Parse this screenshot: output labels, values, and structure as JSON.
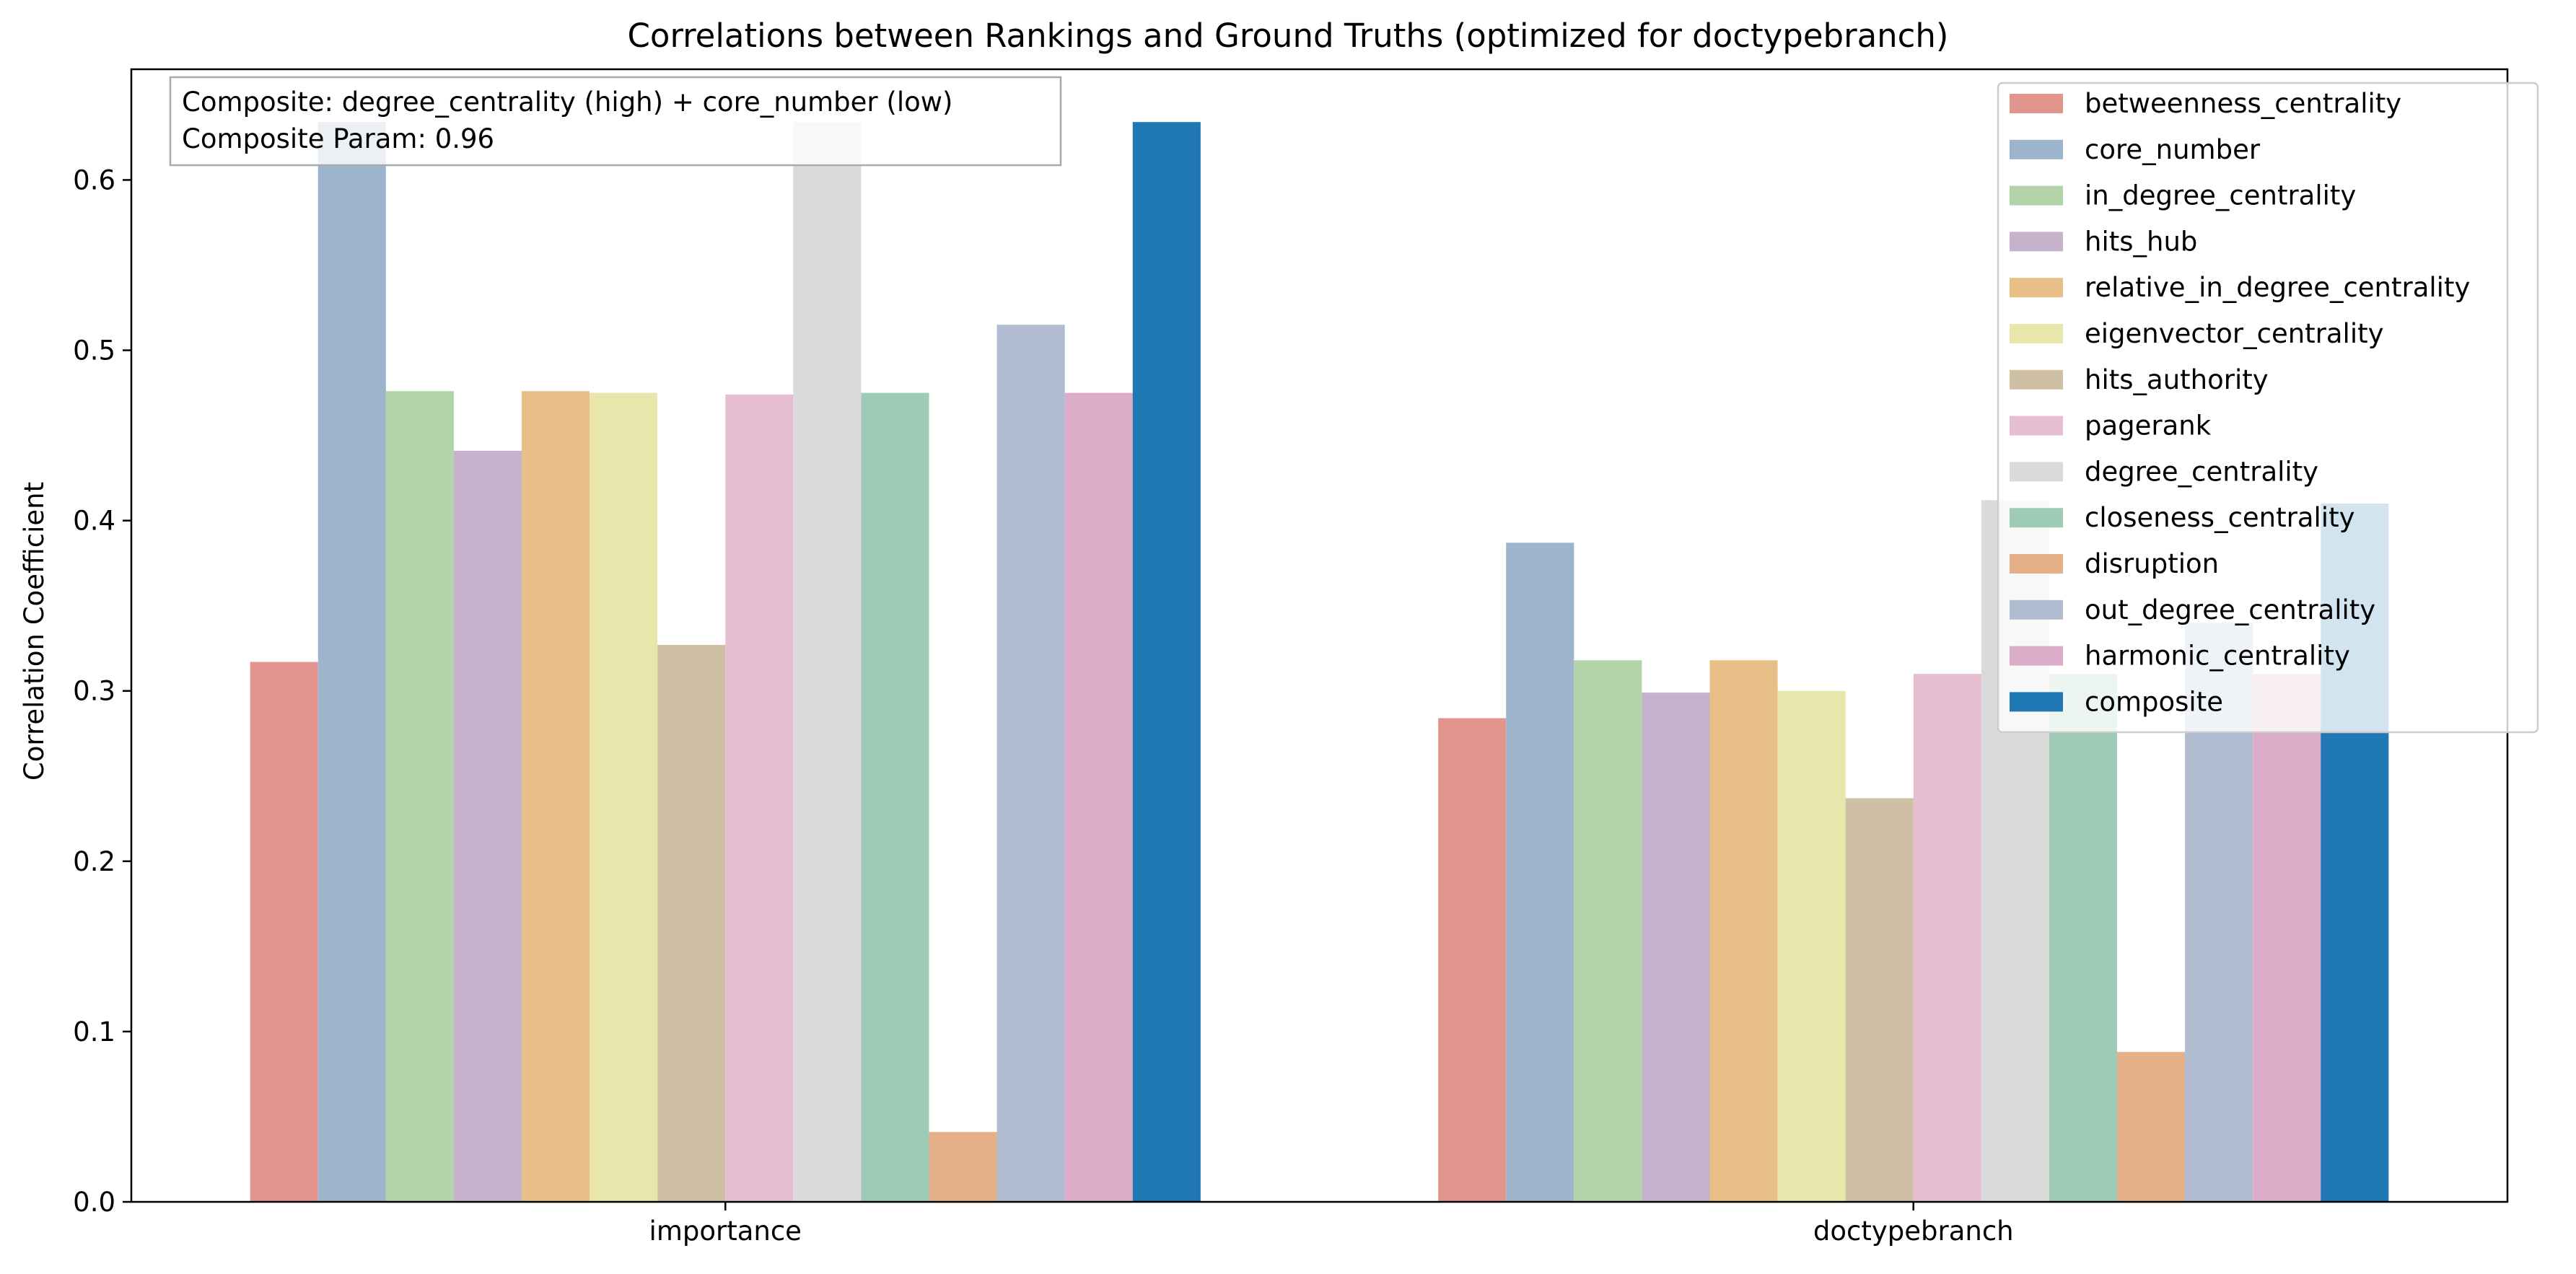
{
  "chart_data": {
    "type": "bar",
    "title": "Correlations between Rankings and Ground Truths (optimized for doctypebranch)",
    "xlabel": "",
    "ylabel": "Correlation Coefficient",
    "ylim": [
      0,
      0.665
    ],
    "yticks": [
      0.0,
      0.1,
      0.2,
      0.3,
      0.4,
      0.5,
      0.6
    ],
    "ytick_labels": [
      "0.0",
      "0.1",
      "0.2",
      "0.3",
      "0.4",
      "0.5",
      "0.6"
    ],
    "grid": false,
    "legend_position": "top-right",
    "categories": [
      "importance",
      "doctypebranch"
    ],
    "series": [
      {
        "name": "betweenness_centrality",
        "color": "#e1958d",
        "values": [
          0.317,
          0.284
        ]
      },
      {
        "name": "core_number",
        "color": "#9cb5cc",
        "values": [
          0.634,
          0.387
        ]
      },
      {
        "name": "in_degree_centrality",
        "color": "#b3d3a9",
        "values": [
          0.476,
          0.318
        ]
      },
      {
        "name": "hits_hub",
        "color": "#c7b2cd",
        "values": [
          0.441,
          0.299
        ]
      },
      {
        "name": "relative_in_degree_centrality",
        "color": "#e7bf87",
        "values": [
          0.476,
          0.318
        ]
      },
      {
        "name": "eigenvector_centrality",
        "color": "#e8e6ab",
        "values": [
          0.475,
          0.3
        ]
      },
      {
        "name": "hits_authority",
        "color": "#cfc0a4",
        "values": [
          0.327,
          0.237
        ]
      },
      {
        "name": "pagerank",
        "color": "#e5bfd1",
        "values": [
          0.474,
          0.31
        ]
      },
      {
        "name": "degree_centrality",
        "color": "#dadada",
        "values": [
          0.634,
          0.412
        ]
      },
      {
        "name": "closeness_centrality",
        "color": "#9ecbb5",
        "values": [
          0.475,
          0.31
        ]
      },
      {
        "name": "disruption",
        "color": "#e5b088",
        "values": [
          0.041,
          0.088
        ]
      },
      {
        "name": "out_degree_centrality",
        "color": "#b1bcd0",
        "values": [
          0.515,
          0.34
        ]
      },
      {
        "name": "harmonic_centrality",
        "color": "#dbadc9",
        "values": [
          0.475,
          0.31
        ]
      },
      {
        "name": "composite",
        "color": "#1f77b4",
        "values": [
          0.634,
          0.41
        ]
      }
    ],
    "annotation": {
      "line1": "Composite: degree_centrality (high) + core_number (low)",
      "line2": "Composite Param: 0.96"
    }
  }
}
